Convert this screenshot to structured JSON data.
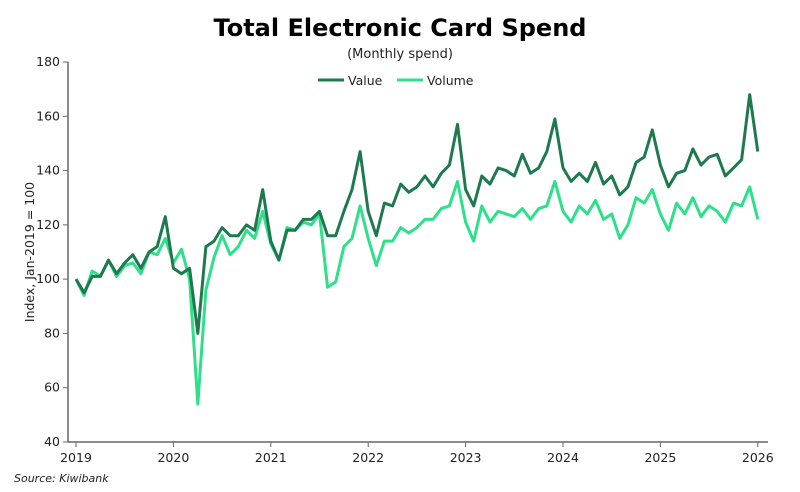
{
  "chart_data": {
    "type": "line",
    "title": "Total Electronic Card Spend",
    "subtitle": "(Monthly spend)",
    "ylabel": "Index, Jan-2019 = 100",
    "xlabel": "",
    "ylim": [
      40,
      180
    ],
    "yticks": [
      40,
      60,
      80,
      100,
      120,
      140,
      160,
      180
    ],
    "xticks": [
      "2019",
      "2020",
      "2021",
      "2022",
      "2023",
      "2024",
      "2025",
      "2026"
    ],
    "x_start": "2019-01",
    "x_end": "2026-01",
    "frequency": "monthly",
    "legend": "top-center",
    "grid": false,
    "series": [
      {
        "name": "Value",
        "color": "#1e7a4e",
        "values": [
          100,
          95,
          101,
          101,
          107,
          102,
          106,
          109,
          104,
          110,
          112,
          123,
          104,
          102,
          104,
          80,
          112,
          114,
          119,
          116,
          116,
          120,
          118,
          133,
          114,
          107,
          118,
          118,
          122,
          122,
          125,
          116,
          116,
          125,
          133,
          147,
          125,
          116,
          128,
          127,
          135,
          132,
          134,
          138,
          134,
          139,
          142,
          157,
          133,
          127,
          138,
          135,
          141,
          140,
          138,
          146,
          139,
          141,
          147,
          159,
          141,
          136,
          139,
          136,
          143,
          135,
          138,
          131,
          134,
          143,
          145,
          155,
          142,
          134,
          139,
          140,
          148,
          142,
          145,
          146,
          138,
          141,
          144,
          168,
          147
        ]
      },
      {
        "name": "Volume",
        "color": "#2ee08a",
        "values": [
          100,
          94,
          103,
          101,
          107,
          101,
          105,
          106,
          102,
          110,
          109,
          115,
          106,
          111,
          100,
          54,
          96,
          108,
          116,
          109,
          112,
          118,
          115,
          125,
          113,
          107,
          119,
          118,
          121,
          120,
          124,
          97,
          99,
          112,
          115,
          127,
          115,
          105,
          114,
          114,
          119,
          117,
          119,
          122,
          122,
          126,
          127,
          136,
          121,
          114,
          127,
          121,
          125,
          124,
          123,
          126,
          122,
          126,
          127,
          136,
          125,
          121,
          127,
          124,
          129,
          122,
          124,
          115,
          120,
          130,
          128,
          133,
          124,
          118,
          128,
          124,
          130,
          123,
          127,
          125,
          121,
          128,
          127,
          134,
          122
        ]
      }
    ]
  },
  "source": "Source: Kiwibank"
}
